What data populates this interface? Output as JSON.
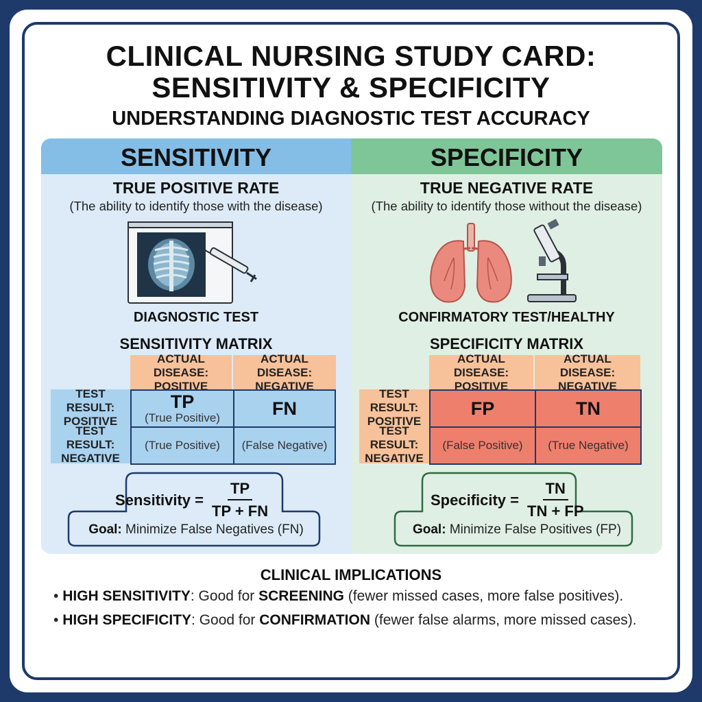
{
  "header": {
    "title_line1": "CLINICAL NURSING STUDY CARD:",
    "title_line2": "SENSITIVITY & SPECIFICITY",
    "subtitle": "UNDERSTANDING DIAGNOSTIC TEST ACCURACY"
  },
  "sensitivity": {
    "heading": "SENSITIVITY",
    "rate": "TRUE POSITIVE RATE",
    "description": "(The ability to identify those with the disease)",
    "illustration_caption": "DIAGNOSTIC TEST",
    "matrix_title": "SENSITIVITY MATRIX",
    "col_headers": [
      "ACTUAL DISEASE: POSITIVE",
      "ACTUAL DISEASE: NEGATIVE"
    ],
    "row_headers": [
      "TEST RESULT: POSITIVE",
      "TEST RESULT: NEGATIVE"
    ],
    "cells": [
      {
        "abbr": "TP",
        "text": "(True Positive)"
      },
      {
        "abbr": "FN",
        "text": ""
      },
      {
        "abbr": "",
        "text": "(True Positive)"
      },
      {
        "abbr": "",
        "text": "(False Negative)"
      }
    ],
    "formula_label": "Sensitivity =",
    "formula_numerator": "TP",
    "formula_denominator": "TP + FN",
    "goal_label": "Goal:",
    "goal_text": "Minimize False Negatives (FN)",
    "colors": {
      "header": "#84bde6",
      "panel": "#dcebf7",
      "cells": "#a9d2ef",
      "row_header": "#a9d2ef",
      "col_header": "#f7c19a",
      "border": "#1d3a6b"
    }
  },
  "specificity": {
    "heading": "SPECIFICITY",
    "rate": "TRUE NEGATIVE RATE",
    "description": "(The ability to identify those without the disease)",
    "illustration_caption": "CONFIRMATORY TEST/HEALTHY",
    "matrix_title": "SPECIFICITY MATRIX",
    "col_headers": [
      "ACTUAL DISEASE: POSITIVE",
      "ACTUAL DISEASE: NEGATIVE"
    ],
    "row_headers": [
      "TEST RESULT: POSITIVE",
      "TEST RESULT: NEGATIVE"
    ],
    "cells": [
      {
        "abbr": "FP",
        "text": ""
      },
      {
        "abbr": "TN",
        "text": ""
      },
      {
        "abbr": "",
        "text": "(False Positive)"
      },
      {
        "abbr": "",
        "text": "(True Negative)"
      }
    ],
    "formula_label": "Specificity =",
    "formula_numerator": "TN",
    "formula_denominator": "TN + FP",
    "goal_label": "Goal:",
    "goal_text": "Minimize False Positives (FP)",
    "colors": {
      "header": "#7ec597",
      "panel": "#e0efe4",
      "cells": "#ee7f6c",
      "row_header": "#f7c19a",
      "col_header": "#f7c19a",
      "border": "#1d3a6b"
    }
  },
  "implications": {
    "title": "CLINICAL IMPLICATIONS",
    "items": [
      {
        "term": "HIGH SENSITIVITY",
        "mid": ": Good for ",
        "keyword": "SCREENING",
        "rest": " (fewer missed cases, more false positives)."
      },
      {
        "term": "HIGH SPECIFICITY",
        "mid": ": Good for ",
        "keyword": "CONFIRMATION",
        "rest": " (fewer false alarms, more missed cases)."
      }
    ]
  },
  "icons": [
    "xray-monitor-icon",
    "syringe-icon",
    "lungs-icon",
    "microscope-icon",
    "bullet-icon"
  ]
}
